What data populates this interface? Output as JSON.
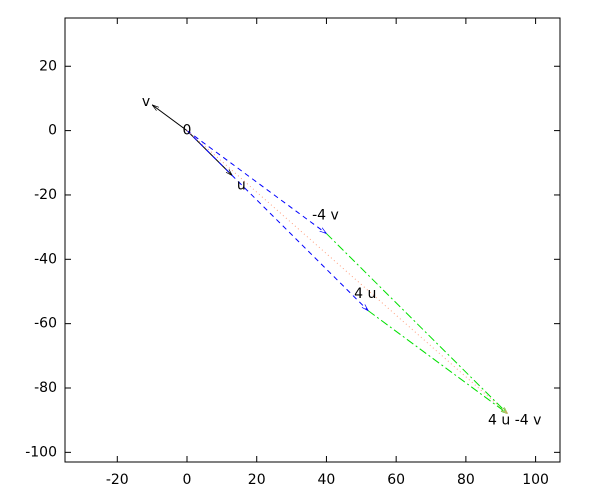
{
  "chart_data": {
    "type": "vector",
    "xlim": [
      -35,
      107
    ],
    "ylim": [
      -103,
      35
    ],
    "xticks": [
      -20,
      0,
      20,
      40,
      60,
      80,
      100
    ],
    "yticks": [
      20,
      0,
      -20,
      -40,
      -60,
      -80,
      -100
    ],
    "segments": [
      {
        "x": [
          0,
          -10
        ],
        "y": [
          0,
          8
        ],
        "color": "#000000",
        "dash": "solid"
      },
      {
        "x": [
          0,
          13
        ],
        "y": [
          0,
          -14
        ],
        "color": "#000000",
        "dash": "solid"
      },
      {
        "x": [
          0,
          40
        ],
        "y": [
          0,
          -32
        ],
        "color": "#0000ff",
        "dash": "dashed"
      },
      {
        "x": [
          0,
          52
        ],
        "y": [
          0,
          -56
        ],
        "color": "#0000ff",
        "dash": "dashed"
      },
      {
        "x": [
          40,
          92
        ],
        "y": [
          -32,
          -88
        ],
        "color": "#00e000",
        "dash": "dashdot"
      },
      {
        "x": [
          52,
          92
        ],
        "y": [
          -56,
          -88
        ],
        "color": "#00e000",
        "dash": "dashdot"
      },
      {
        "x": [
          0,
          92
        ],
        "y": [
          0,
          -88
        ],
        "color": "#ffa080",
        "dash": "dotted"
      }
    ],
    "points": [
      {
        "label": "v",
        "x": -10,
        "y": 8
      },
      {
        "label": "0",
        "x": 0,
        "y": 0
      },
      {
        "label": "u",
        "x": 13,
        "y": -14
      },
      {
        "label": "-4 v",
        "x": 40,
        "y": -32
      },
      {
        "label": "4 u",
        "x": 52,
        "y": -56
      },
      {
        "label": "4 u -4 v",
        "x": 92,
        "y": -88
      }
    ]
  }
}
